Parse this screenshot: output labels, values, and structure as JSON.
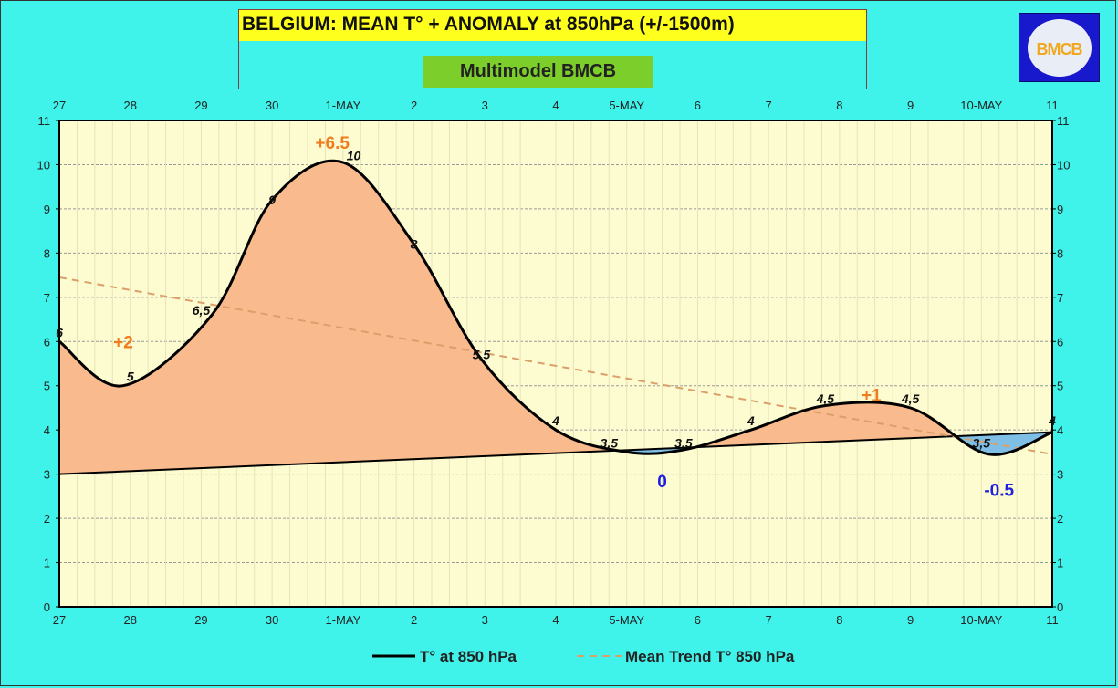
{
  "header": {
    "title": "BELGIUM:  MEAN T° + ANOMALY at 850hPa (+/-1500m)",
    "subtitle": "Multimodel BMCB",
    "logo_text": "BMCB"
  },
  "colors": {
    "background": "#3ff2ea",
    "plot_area": "#fdfbd0",
    "title_band": "#ffff1e",
    "subtitle_box": "#7ccf2a",
    "positive_anomaly_fill": "#f9bb8e",
    "negative_anomaly_fill": "#7fbfe6",
    "temperature_line": "#000000",
    "trend_line": "#d9a06a",
    "positive_label": "#f07c20",
    "negative_label": "#2020e0"
  },
  "chart_data": {
    "type": "line",
    "x_labels": [
      "27",
      "28",
      "29",
      "30",
      "1-MAY",
      "2",
      "3",
      "4",
      "5-MAY",
      "6",
      "7",
      "8",
      "9",
      "10-MAY",
      "11"
    ],
    "ylim": [
      0,
      11
    ],
    "yticks": [
      0,
      1,
      2,
      3,
      4,
      5,
      6,
      7,
      8,
      9,
      10,
      11
    ],
    "grid": true,
    "legend_position": "bottom",
    "series": [
      {
        "name": "T° at 850 hPa",
        "style": "solid",
        "x": [
          0,
          0.9,
          2.15,
          3,
          4.15,
          5,
          5.95,
          7,
          7.75,
          8.8,
          9.75,
          10.8
        ],
        "values": [
          6,
          5,
          6.5,
          9,
          10,
          8,
          5.5,
          4,
          3.5,
          3.5,
          4,
          4.5
        ]
      },
      {
        "name": "Mean Trend T° 850 hPa",
        "style": "dashed",
        "x": [
          0,
          14
        ],
        "values": [
          7.45,
          3.45
        ]
      }
    ],
    "curve": {
      "x": [
        0,
        0.9,
        2.15,
        3,
        4.0,
        5,
        5.95,
        7,
        8.0,
        8.8,
        9.75,
        10.8,
        12.0,
        13.1,
        14
      ],
      "values": [
        6,
        5,
        6.6,
        9.2,
        10.05,
        8.2,
        5.6,
        4.0,
        3.5,
        3.55,
        4.0,
        4.55,
        4.5,
        3.45,
        3.95
      ]
    },
    "baseline": {
      "x": [
        0,
        14
      ],
      "values": [
        3.0,
        3.95
      ]
    },
    "data_labels": [
      {
        "text": "6",
        "x": 0,
        "y": 6
      },
      {
        "text": "5",
        "x": 1.0,
        "y": 5
      },
      {
        "text": "6,5",
        "x": 2.0,
        "y": 6.5
      },
      {
        "text": "9",
        "x": 3.0,
        "y": 9
      },
      {
        "text": "10",
        "x": 4.15,
        "y": 10
      },
      {
        "text": "8",
        "x": 5.0,
        "y": 8
      },
      {
        "text": "5,5",
        "x": 5.95,
        "y": 5.5
      },
      {
        "text": "4",
        "x": 7.0,
        "y": 4
      },
      {
        "text": "3,5",
        "x": 7.75,
        "y": 3.5
      },
      {
        "text": "3,5",
        "x": 8.8,
        "y": 3.5
      },
      {
        "text": "4",
        "x": 9.75,
        "y": 4
      },
      {
        "text": "4,5",
        "x": 10.8,
        "y": 4.5
      },
      {
        "text": "4,5",
        "x": 12.0,
        "y": 4.5
      },
      {
        "text": "3,5",
        "x": 13.0,
        "y": 3.5
      },
      {
        "text": "4",
        "x": 14.0,
        "y": 4
      }
    ],
    "anomaly_labels": [
      {
        "text": "+2",
        "x": 0.9,
        "y": 6.0,
        "sign": "positive"
      },
      {
        "text": "+6.5",
        "x": 3.85,
        "y": 10.5,
        "sign": "positive"
      },
      {
        "text": "0",
        "x": 8.5,
        "y": 2.85,
        "sign": "negative"
      },
      {
        "text": "+1",
        "x": 11.45,
        "y": 4.8,
        "sign": "positive"
      },
      {
        "text": "-0.5",
        "x": 13.25,
        "y": 2.65,
        "sign": "negative"
      }
    ]
  }
}
